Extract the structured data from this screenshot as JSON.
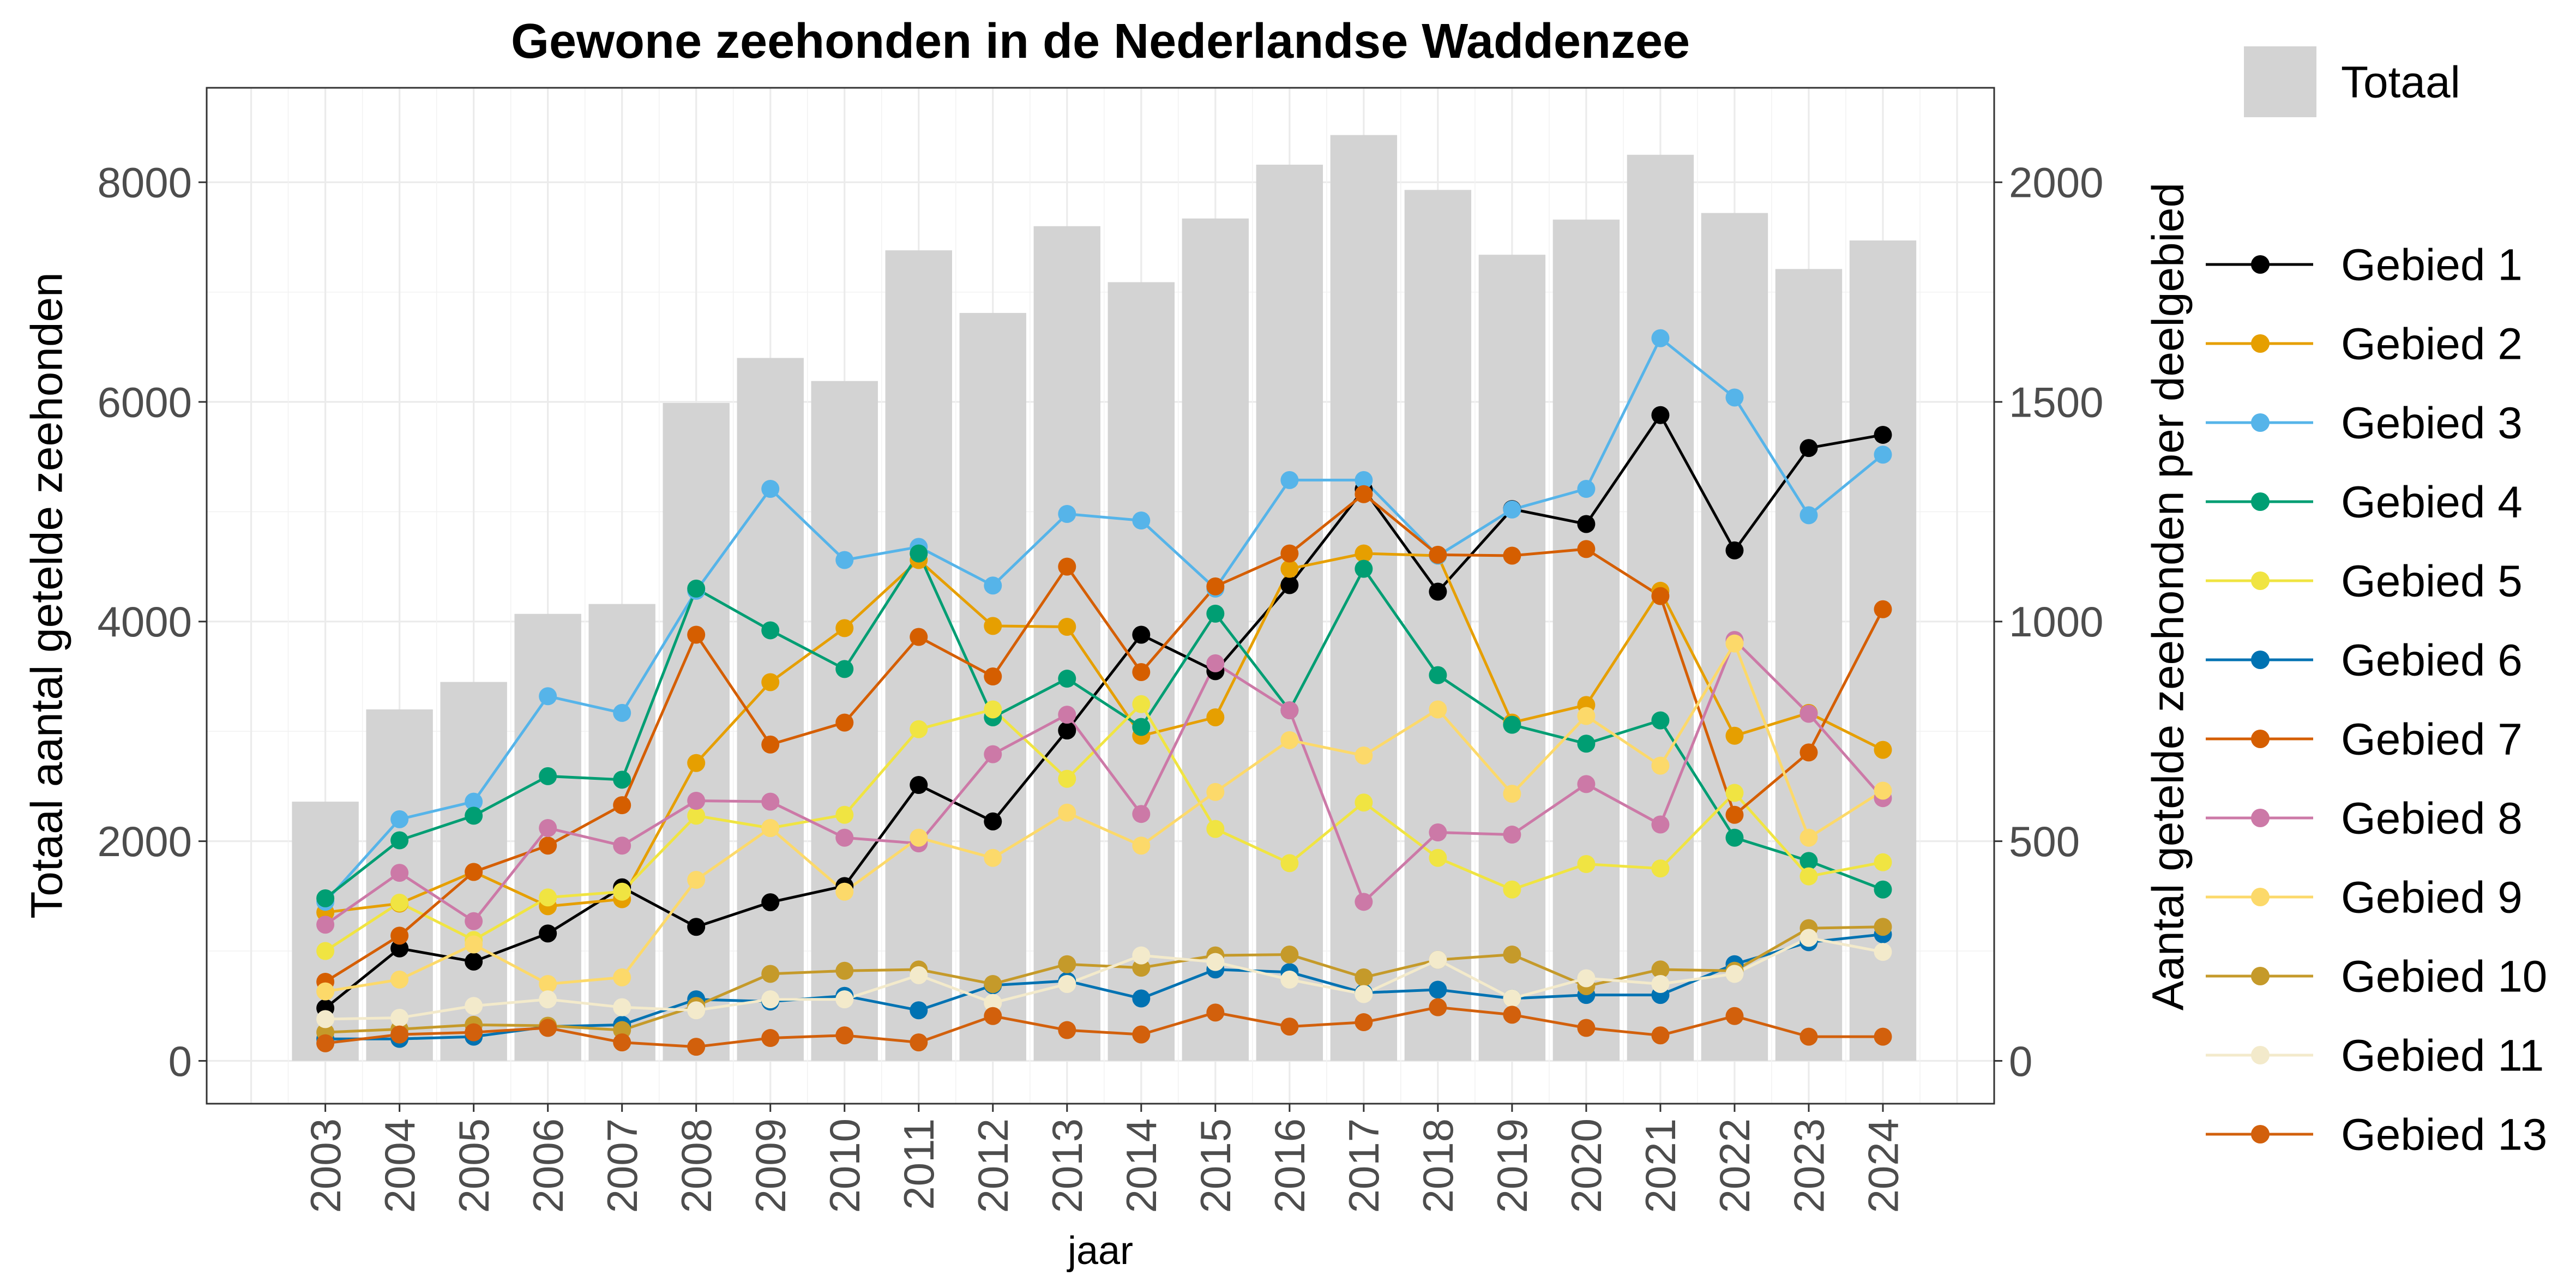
{
  "chart_data": {
    "type": [
      "bar",
      "line"
    ],
    "title": "Gewone zeehonden in de Nederlandse Waddenzee",
    "xlabel": "jaar",
    "ylabel_left": "Totaal aantal getelde zeehonden",
    "ylabel_right": "Aantal getelde zeehonden per deelgebied",
    "x": [
      2003,
      2004,
      2005,
      2006,
      2007,
      2008,
      2009,
      2010,
      2011,
      2012,
      2013,
      2014,
      2015,
      2016,
      2017,
      2018,
      2019,
      2020,
      2021,
      2022,
      2023,
      2024
    ],
    "xlim": [
      2001.4,
      2025.5
    ],
    "yticks_left": [
      0,
      2000,
      4000,
      6000,
      8000
    ],
    "yticks_right": [
      0,
      500,
      1000,
      1500,
      2000
    ],
    "ylim_left": [
      -390,
      8860
    ],
    "ylim_right": [
      -97.5,
      2215
    ],
    "grid": true,
    "legend_position": "right",
    "bars": {
      "name": "Totaal",
      "axis": "left",
      "color": "#D3D3D3",
      "values": [
        2360,
        3200,
        3450,
        4070,
        4160,
        5990,
        6400,
        6190,
        7380,
        6810,
        7600,
        7090,
        7670,
        8160,
        8430,
        7930,
        7340,
        7660,
        8250,
        7720,
        7210,
        7470
      ]
    },
    "series": [
      {
        "name": "Gebied 1",
        "axis": "right",
        "color": "#000000",
        "values": [
          120,
          256,
          226,
          290,
          395,
          305,
          361,
          398,
          628,
          545,
          752,
          970,
          887,
          1083,
          1301,
          1068,
          1256,
          1222,
          1470,
          1162,
          1395,
          1425
        ]
      },
      {
        "name": "Gebied 2",
        "axis": "right",
        "color": "#E69F00",
        "values": [
          338,
          358,
          430,
          352,
          368,
          678,
          862,
          985,
          1140,
          990,
          988,
          740,
          782,
          1120,
          1155,
          1150,
          770,
          810,
          1070,
          740,
          792,
          708
        ]
      },
      {
        "name": "Gebied 3",
        "axis": "right",
        "color": "#56B4E9",
        "values": [
          362,
          550,
          590,
          830,
          792,
          1070,
          1302,
          1140,
          1170,
          1082,
          1245,
          1230,
          1075,
          1322,
          1322,
          1150,
          1255,
          1302,
          1645,
          1510,
          1242,
          1380
        ]
      },
      {
        "name": "Gebied 4",
        "axis": "right",
        "color": "#009E73",
        "values": [
          370,
          502,
          558,
          648,
          640,
          1075,
          980,
          892,
          1155,
          782,
          870,
          760,
          1018,
          798,
          1120,
          878,
          765,
          722,
          775,
          508,
          455,
          390
        ]
      },
      {
        "name": "Gebied 5",
        "axis": "right",
        "color": "#F0E442",
        "values": [
          250,
          360,
          275,
          372,
          385,
          558,
          530,
          560,
          755,
          800,
          642,
          812,
          528,
          450,
          588,
          462,
          390,
          448,
          438,
          610,
          420,
          452
        ]
      },
      {
        "name": "Gebied 6",
        "axis": "right",
        "color": "#0072B2",
        "values": [
          50,
          50,
          55,
          78,
          82,
          140,
          135,
          148,
          115,
          172,
          182,
          142,
          208,
          202,
          155,
          162,
          142,
          150,
          150,
          220,
          270,
          288
        ]
      },
      {
        "name": "Gebied 7",
        "axis": "right",
        "color": "#D55E00",
        "values": [
          180,
          285,
          430,
          490,
          582,
          970,
          720,
          770,
          965,
          875,
          1125,
          885,
          1080,
          1155,
          1290,
          1152,
          1150,
          1165,
          1058,
          560,
          702,
          1028
        ]
      },
      {
        "name": "Gebied 8",
        "axis": "right",
        "color": "#CC79A7",
        "values": [
          310,
          428,
          318,
          530,
          490,
          592,
          590,
          508,
          495,
          698,
          788,
          562,
          905,
          798,
          362,
          520,
          515,
          630,
          538,
          958,
          790,
          598
        ]
      },
      {
        "name": "Gebied 9",
        "axis": "right",
        "color": "#FCD96A",
        "values": [
          158,
          185,
          265,
          175,
          190,
          412,
          530,
          385,
          508,
          462,
          565,
          490,
          612,
          730,
          695,
          800,
          608,
          785,
          672,
          950,
          508,
          615
        ]
      },
      {
        "name": "Gebied 10",
        "axis": "right",
        "color": "#C59A2A",
        "values": [
          65,
          72,
          82,
          80,
          70,
          125,
          198,
          205,
          208,
          175,
          220,
          212,
          240,
          242,
          190,
          230,
          242,
          170,
          208,
          205,
          302,
          305
        ]
      },
      {
        "name": "Gebied 11",
        "axis": "right",
        "color": "#F3EACB",
        "values": [
          95,
          98,
          125,
          140,
          122,
          115,
          140,
          140,
          195,
          132,
          175,
          240,
          225,
          185,
          152,
          230,
          142,
          188,
          175,
          198,
          280,
          248
        ]
      },
      {
        "name": "Gebied 13",
        "axis": "right",
        "color": "#D2600C",
        "values": [
          40,
          60,
          65,
          75,
          42,
          32,
          52,
          58,
          42,
          102,
          70,
          60,
          110,
          78,
          88,
          122,
          105,
          75,
          58,
          102,
          55,
          55
        ]
      }
    ]
  }
}
